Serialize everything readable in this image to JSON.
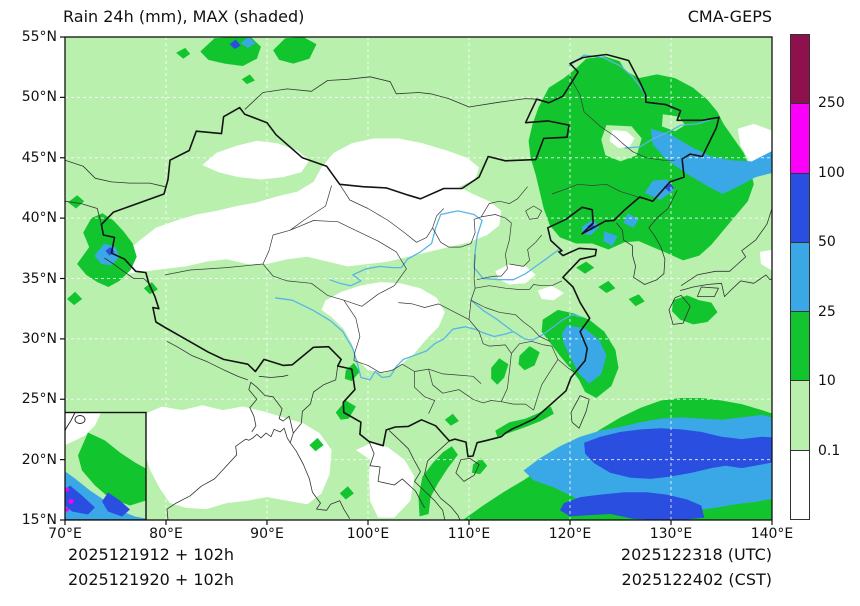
{
  "header": {
    "title": "Rain 24h (mm), MAX (shaded)",
    "model": "CMA-GEPS"
  },
  "colorbar": {
    "labels": [
      "250",
      "100",
      "50",
      "25",
      "10",
      "0.1"
    ],
    "segment_colors": [
      "#8e104d",
      "#fa00fa",
      "#2a4fe0",
      "#3aa8e6",
      "#12c52e",
      "#b9f0ae",
      "#ffffff"
    ]
  },
  "axes": {
    "x_ticks": [
      "70°E",
      "80°E",
      "90°E",
      "100°E",
      "110°E",
      "120°E",
      "130°E",
      "140°E"
    ],
    "y_ticks": [
      "55°N",
      "50°N",
      "45°N",
      "40°N",
      "35°N",
      "30°N",
      "25°N",
      "20°N",
      "15°N"
    ]
  },
  "footer": {
    "init_utc": "2025121912 + 102h",
    "init_cst": "2025121920 + 102h",
    "valid_utc": "2025122318 (UTC)",
    "valid_cst": "2025122402 (CST)"
  }
}
